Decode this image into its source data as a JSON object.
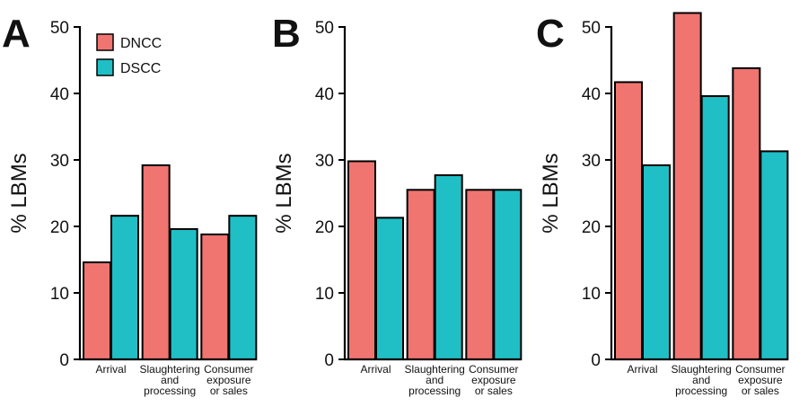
{
  "colors": {
    "DNCC": "#F07470",
    "DSCC": "#1FBFC5",
    "axis": "#000000"
  },
  "legend": {
    "entries": [
      {
        "name": "DNCC",
        "color": "#F07470"
      },
      {
        "name": "DSCC",
        "color": "#1FBFC5"
      }
    ]
  },
  "chart_data": [
    {
      "type": "bar",
      "panel": "A",
      "ylabel": "% LBMs",
      "ylim": [
        0,
        50
      ],
      "yticks": [
        "0",
        "10",
        "20",
        "30",
        "40",
        "50"
      ],
      "categories": [
        [
          "Arrival"
        ],
        [
          "Slaughtering",
          "and",
          "processing"
        ],
        [
          "Consumer",
          "exposure",
          "or sales"
        ]
      ],
      "series": [
        {
          "name": "DNCC",
          "values": [
            14.6,
            29.2,
            18.8
          ]
        },
        {
          "name": "DSCC",
          "values": [
            21.6,
            19.6,
            21.6
          ]
        }
      ],
      "legend_position": "top-left"
    },
    {
      "type": "bar",
      "panel": "B",
      "ylabel": "% LBMs",
      "ylim": [
        0,
        50
      ],
      "yticks": [
        "0",
        "10",
        "20",
        "30",
        "40",
        "50"
      ],
      "categories": [
        [
          "Arrival"
        ],
        [
          "Slaughtering",
          "and",
          "processing"
        ],
        [
          "Consumer",
          "exposure",
          "or sales"
        ]
      ],
      "series": [
        {
          "name": "DNCC",
          "values": [
            29.8,
            25.5,
            25.5
          ]
        },
        {
          "name": "DSCC",
          "values": [
            21.3,
            27.7,
            25.5
          ]
        }
      ]
    },
    {
      "type": "bar",
      "panel": "C",
      "ylabel": "% LBMs",
      "ylim": [
        0,
        50
      ],
      "yticks": [
        "0",
        "10",
        "20",
        "30",
        "40",
        "50"
      ],
      "categories": [
        [
          "Arrival"
        ],
        [
          "Slaughtering",
          "and",
          "processing"
        ],
        [
          "Consumer",
          "exposure",
          "or sales"
        ]
      ],
      "series": [
        {
          "name": "DNCC",
          "values": [
            41.7,
            52.1,
            43.8
          ]
        },
        {
          "name": "DSCC",
          "values": [
            29.2,
            39.6,
            31.3
          ]
        }
      ]
    }
  ]
}
